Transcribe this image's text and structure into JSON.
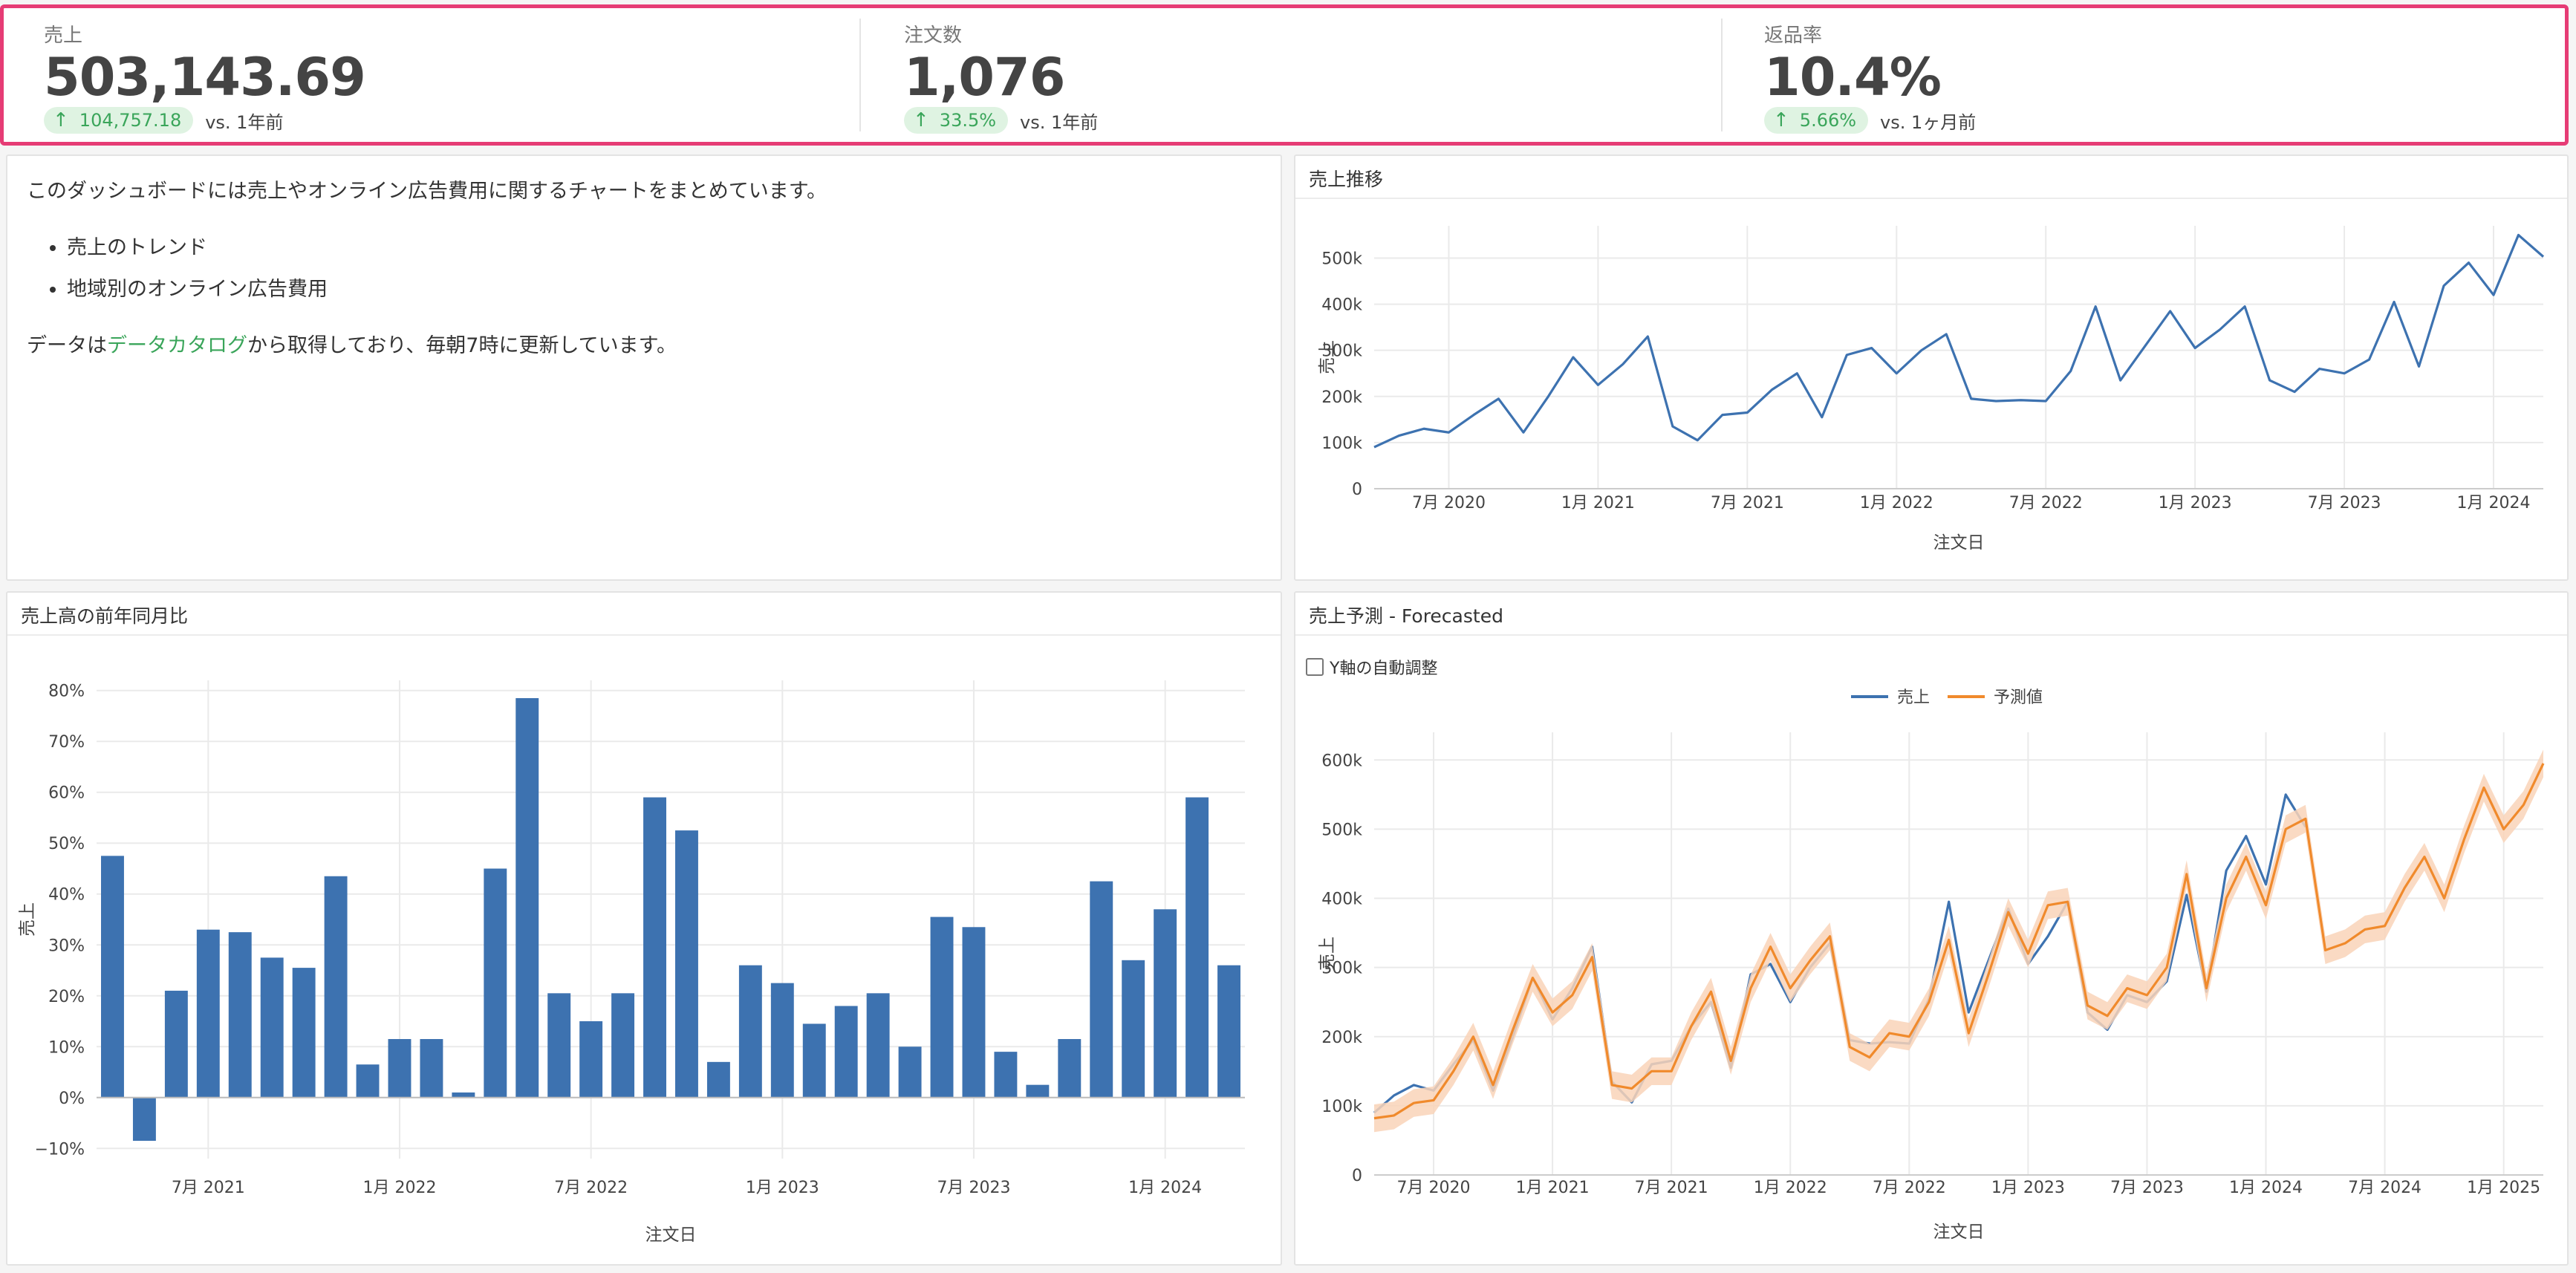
{
  "kpis": [
    {
      "label": "売上",
      "value": "503,143.69",
      "delta": "104,757.18",
      "comparison": "vs. 1年前"
    },
    {
      "label": "注文数",
      "value": "1,076",
      "delta": "33.5%",
      "comparison": "vs. 1年前"
    },
    {
      "label": "返品率",
      "value": "10.4%",
      "delta": "5.66%",
      "comparison": "vs. 1ヶ月前"
    }
  ],
  "description": {
    "intro": "このダッシュボードには売上やオンライン広告費用に関するチャートをまとめています。",
    "bullets": [
      "売上のトレンド",
      "地域別のオンライン広告費用"
    ],
    "outro_before": "データは",
    "outro_link": "データカタログ",
    "outro_after": "から取得しており、毎朝7時に更新しています。"
  },
  "panels": {
    "sales_trend_title": "売上推移",
    "yoy_title": "売上高の前年同月比",
    "forecast_title": "売上予測 - Forecasted",
    "autoscale_label": "Y軸の自動調整"
  },
  "colors": {
    "primary": "#3d72b0",
    "forecast": "#f08a2c",
    "band": "#f9d4b8",
    "positive": "#3aa55a",
    "highlight": "#e63c75"
  },
  "chart_data": [
    {
      "type": "line",
      "title": "売上推移",
      "xlabel": "注文日",
      "ylabel": "売上",
      "x_start": "2020-04",
      "x_ticks": [
        "7月 2020",
        "1月 2021",
        "7月 2021",
        "1月 2022",
        "7月 2022",
        "1月 2023",
        "7月 2023",
        "1月 2024"
      ],
      "y_ticks": [
        "0",
        "100k",
        "200k",
        "300k",
        "400k",
        "500k"
      ],
      "ylim": [
        0,
        570000
      ],
      "series": [
        {
          "name": "売上",
          "values": [
            90000,
            115000,
            130000,
            122000,
            160000,
            195000,
            122000,
            200000,
            285000,
            225000,
            270000,
            330000,
            135000,
            105000,
            160000,
            165000,
            215000,
            250000,
            155000,
            290000,
            305000,
            250000,
            300000,
            335000,
            195000,
            190000,
            192000,
            190000,
            255000,
            395000,
            235000,
            310000,
            385000,
            305000,
            345000,
            395000,
            235000,
            210000,
            260000,
            250000,
            280000,
            405000,
            265000,
            440000,
            490000,
            420000,
            550000,
            503000
          ]
        }
      ]
    },
    {
      "type": "bar",
      "title": "売上高の前年同月比",
      "xlabel": "注文日",
      "ylabel": "売上",
      "x_start": "2021-04",
      "x_ticks": [
        "7月 2021",
        "1月 2022",
        "7月 2022",
        "1月 2023",
        "7月 2023",
        "1月 2024"
      ],
      "y_ticks": [
        "−10%",
        "0%",
        "10%",
        "20%",
        "30%",
        "40%",
        "50%",
        "60%",
        "70%",
        "80%"
      ],
      "ylim": [
        -12,
        82
      ],
      "values": [
        47.5,
        -8.5,
        21,
        33,
        32.5,
        27.5,
        25.5,
        43.5,
        6.5,
        11.5,
        11.5,
        1,
        45,
        78.5,
        20.5,
        15,
        20.5,
        59,
        52.5,
        7,
        26,
        22.5,
        14.5,
        18,
        20.5,
        10,
        35.5,
        33.5,
        9,
        2.5,
        11.5,
        42.5,
        27,
        37,
        59,
        26
      ]
    },
    {
      "type": "line",
      "title": "売上予測 - Forecasted",
      "xlabel": "注文日",
      "ylabel": "売上",
      "x_start": "2020-04",
      "x_ticks": [
        "7月 2020",
        "1月 2021",
        "7月 2021",
        "1月 2022",
        "7月 2022",
        "1月 2023",
        "7月 2023",
        "1月 2024",
        "7月 2024",
        "1月 2025"
      ],
      "y_ticks": [
        "0",
        "100k",
        "200k",
        "300k",
        "400k",
        "500k",
        "600k"
      ],
      "ylim": [
        0,
        640000
      ],
      "legend_position": "top-center",
      "series": [
        {
          "name": "売上",
          "values": [
            90000,
            115000,
            130000,
            122000,
            160000,
            195000,
            122000,
            200000,
            285000,
            225000,
            270000,
            330000,
            135000,
            105000,
            160000,
            165000,
            215000,
            250000,
            155000,
            290000,
            305000,
            250000,
            300000,
            335000,
            195000,
            190000,
            192000,
            190000,
            255000,
            395000,
            235000,
            310000,
            385000,
            305000,
            345000,
            395000,
            235000,
            210000,
            260000,
            250000,
            280000,
            405000,
            265000,
            440000,
            490000,
            420000,
            550000,
            503000
          ]
        },
        {
          "name": "予測値",
          "values": [
            82000,
            86000,
            104000,
            108000,
            150000,
            200000,
            130000,
            210000,
            285000,
            235000,
            260000,
            315000,
            130000,
            125000,
            150000,
            150000,
            215000,
            265000,
            165000,
            270000,
            330000,
            270000,
            310000,
            345000,
            185000,
            170000,
            205000,
            200000,
            250000,
            340000,
            205000,
            290000,
            380000,
            320000,
            390000,
            395000,
            245000,
            230000,
            270000,
            260000,
            300000,
            435000,
            270000,
            400000,
            460000,
            390000,
            500000,
            515000,
            325000,
            335000,
            355000,
            360000,
            415000,
            460000,
            400000,
            485000,
            560000,
            500000,
            535000,
            595000
          ],
          "band_halfwidth": 20000
        }
      ]
    }
  ]
}
